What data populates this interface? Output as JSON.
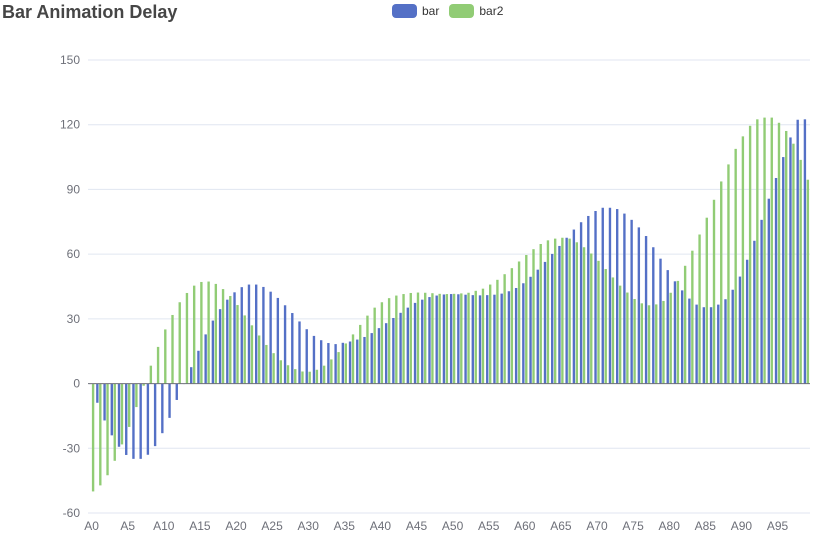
{
  "title": "Bar Animation Delay",
  "legend": [
    {
      "name": "bar",
      "color": "#5470c6"
    },
    {
      "name": "bar2",
      "color": "#91cc75"
    }
  ],
  "chart_data": {
    "type": "bar",
    "title": "Bar Animation Delay",
    "xlabel": "",
    "ylabel": "",
    "ylim": [
      -60,
      150
    ],
    "yticks": [
      -60,
      -30,
      0,
      30,
      60,
      90,
      120,
      150
    ],
    "grid": true,
    "legend_position": "top-center",
    "categories": [
      "A0",
      "A1",
      "A2",
      "A3",
      "A4",
      "A5",
      "A6",
      "A7",
      "A8",
      "A9",
      "A10",
      "A11",
      "A12",
      "A13",
      "A14",
      "A15",
      "A16",
      "A17",
      "A18",
      "A19",
      "A20",
      "A21",
      "A22",
      "A23",
      "A24",
      "A25",
      "A26",
      "A27",
      "A28",
      "A29",
      "A30",
      "A31",
      "A32",
      "A33",
      "A34",
      "A35",
      "A36",
      "A37",
      "A38",
      "A39",
      "A40",
      "A41",
      "A42",
      "A43",
      "A44",
      "A45",
      "A46",
      "A47",
      "A48",
      "A49",
      "A50",
      "A51",
      "A52",
      "A53",
      "A54",
      "A55",
      "A56",
      "A57",
      "A58",
      "A59",
      "A60",
      "A61",
      "A62",
      "A63",
      "A64",
      "A65",
      "A66",
      "A67",
      "A68",
      "A69",
      "A70",
      "A71",
      "A72",
      "A73",
      "A74",
      "A75",
      "A76",
      "A77",
      "A78",
      "A79",
      "A80",
      "A81",
      "A82",
      "A83",
      "A84",
      "A85",
      "A86",
      "A87",
      "A88",
      "A89",
      "A90",
      "A91",
      "A92",
      "A93",
      "A94",
      "A95",
      "A96",
      "A97",
      "A98",
      "A99"
    ],
    "xtick_labels_shown": [
      "A0",
      "A5",
      "A10",
      "A15",
      "A20",
      "A25",
      "A30",
      "A35",
      "A40",
      "A45",
      "A50",
      "A55",
      "A60",
      "A65",
      "A70",
      "A75",
      "A80",
      "A85",
      "A90",
      "A95"
    ],
    "series": [
      {
        "name": "bar",
        "color": "#5470c6",
        "values": [
          0,
          -8.9,
          -17.1,
          -24.0,
          -29.3,
          -33.1,
          -34.9,
          -34.9,
          -33.0,
          -29.0,
          -23.0,
          -15.9,
          -7.6,
          0,
          7.6,
          15.2,
          22.8,
          29.2,
          34.5,
          38.9,
          42.3,
          44.7,
          45.9,
          45.9,
          44.8,
          42.6,
          39.7,
          36.3,
          32.7,
          28.8,
          25.2,
          22.1,
          20.1,
          18.8,
          18.3,
          18.9,
          19.5,
          20.4,
          21.6,
          23.4,
          25.7,
          28.0,
          30.4,
          32.8,
          35.2,
          37.4,
          38.9,
          40.1,
          40.8,
          41.3,
          41.5,
          41.4,
          41.2,
          41.0,
          40.9,
          41.0,
          41.2,
          41.7,
          42.8,
          44.3,
          46.5,
          49.5,
          52.8,
          56.4,
          60.1,
          63.8,
          67.6,
          71.4,
          74.8,
          77.7,
          80.0,
          81.5,
          81.5,
          80.9,
          78.8,
          75.9,
          72.4,
          68.4,
          63.2,
          57.9,
          52.6,
          47.4,
          43.2,
          39.4,
          36.6,
          35.4,
          35.4,
          36.6,
          39.1,
          43.5,
          49.6,
          57.4,
          66.2,
          75.9,
          85.7,
          95.3,
          105.0,
          114.1,
          122.3,
          122.5
        ]
      },
      {
        "name": "bar2",
        "color": "#91cc75",
        "values": [
          -50.0,
          -47.2,
          -42.5,
          -35.8,
          -28.2,
          -20.1,
          -10.9,
          -1.0,
          8.3,
          17.0,
          25.1,
          31.8,
          37.7,
          42.0,
          45.4,
          47.1,
          47.3,
          46.2,
          43.8,
          40.6,
          36.4,
          31.6,
          27.0,
          22.3,
          17.9,
          14.1,
          10.8,
          8.5,
          6.7,
          5.6,
          5.5,
          6.4,
          8.3,
          11.2,
          14.6,
          18.6,
          22.8,
          27.2,
          31.5,
          35.2,
          37.7,
          39.6,
          40.8,
          41.5,
          42.0,
          42.2,
          42.1,
          41.9,
          41.6,
          41.5,
          41.6,
          41.8,
          42.1,
          43.0,
          44.0,
          45.9,
          48.1,
          50.7,
          53.5,
          56.6,
          59.6,
          62.3,
          64.7,
          66.4,
          67.2,
          67.6,
          67.2,
          65.5,
          63.2,
          60.3,
          56.9,
          53.1,
          49.2,
          45.4,
          42.2,
          39.2,
          37.2,
          36.3,
          36.7,
          38.3,
          42.1,
          47.6,
          54.6,
          61.6,
          69.1,
          76.9,
          85.2,
          93.7,
          101.6,
          108.8,
          114.6,
          119.5,
          122.5,
          123.3,
          123.3,
          120.9,
          117.1,
          111.2,
          103.7,
          94.5
        ]
      }
    ]
  }
}
